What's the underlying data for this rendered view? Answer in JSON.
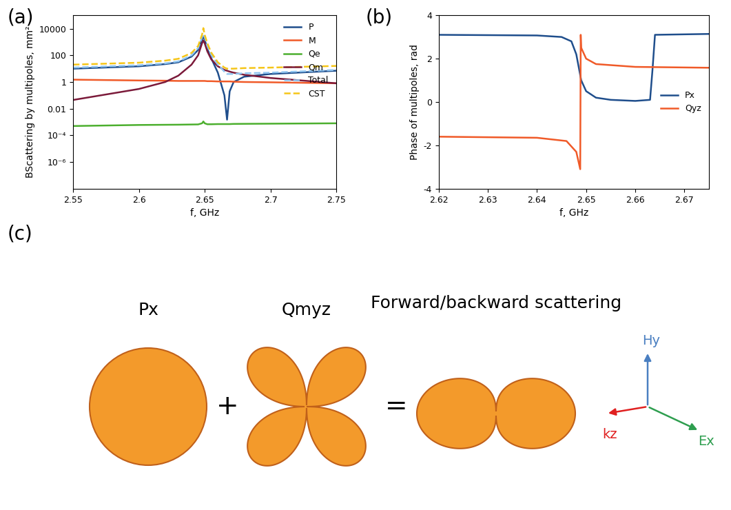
{
  "chart_data": [
    {
      "type": "line",
      "title": "(a)",
      "x_label": "f, GHz",
      "y_label": "BScattering by multipoles, mm²",
      "log": "y",
      "legend": "upper right",
      "xlim": [
        2.55,
        2.75
      ],
      "xticks": [
        2.55,
        2.6,
        2.65,
        2.7,
        2.75
      ],
      "ylim": [
        1e-08,
        100000
      ],
      "yticks": [
        {
          "value": 1e-06,
          "label": "10⁻⁶"
        },
        {
          "value": 0.0001,
          "label": "10⁻⁴"
        },
        {
          "value": 0.01,
          "label": "0.01"
        },
        {
          "value": 1,
          "label": "1"
        },
        {
          "value": 100,
          "label": "100"
        },
        {
          "value": 10000,
          "label": "10000"
        }
      ],
      "x": [
        2.55,
        2.6,
        2.62,
        2.63,
        2.64,
        2.645,
        2.648,
        2.649,
        2.65,
        2.652,
        2.655,
        2.66,
        2.665,
        2.667,
        2.669,
        2.672,
        2.68,
        2.7,
        2.75
      ],
      "series": [
        {
          "name": "P",
          "color": "#1f4e8c",
          "line_style": "solid",
          "values": [
            10,
            15,
            22,
            30,
            80,
            250,
            1500,
            2500,
            1500,
            300,
            60,
            5,
            0.1,
            0.0015,
            0.2,
            1,
            2.5,
            4,
            7
          ]
        },
        {
          "name": "M",
          "color": "#f05a28",
          "line_style": "solid",
          "values": [
            1.5,
            1.3,
            1.25,
            1.2,
            1.2,
            1.2,
            1.2,
            1.2,
            1.2,
            1.15,
            1.15,
            1.1,
            1.1,
            1.1,
            1.1,
            1.05,
            1.0,
            0.95,
            0.8
          ]
        },
        {
          "name": "Qe",
          "color": "#4caf2e",
          "line_style": "solid",
          "values": [
            0.0005,
            0.0006,
            0.00062,
            0.00063,
            0.00065,
            0.00066,
            0.0008,
            0.0011,
            0.0008,
            0.00068,
            0.00068,
            0.0007,
            0.0007,
            0.0007,
            0.0007,
            0.00072,
            0.00073,
            0.00075,
            0.0008
          ]
        },
        {
          "name": "Qm",
          "color": "#7b1a3a",
          "line_style": "solid",
          "values": [
            0.045,
            0.3,
            1,
            3,
            20,
            100,
            800,
            1300,
            800,
            200,
            50,
            15,
            8,
            7,
            6,
            5,
            3.5,
            2,
            0.8
          ]
        },
        {
          "name": "Total",
          "color": "#8fc4f0",
          "line_style": "dashed",
          "values": [
            12,
            18,
            25,
            35,
            100,
            350,
            2300,
            4000,
            2300,
            500,
            110,
            20,
            6,
            4,
            4,
            4,
            4.5,
            5,
            8
          ]
        },
        {
          "name": "CST",
          "color": "#f5c518",
          "line_style": "dashed",
          "values": [
            20,
            28,
            40,
            55,
            150,
            500,
            3500,
            11000,
            3500,
            800,
            160,
            30,
            12,
            10,
            10,
            10,
            11,
            12,
            16
          ]
        }
      ]
    },
    {
      "type": "line",
      "title": "(b)",
      "x_label": "f, GHz",
      "y_label": "Phase of multipoles, rad",
      "legend": "center right",
      "xlim": [
        2.62,
        2.675
      ],
      "xticks": [
        2.62,
        2.63,
        2.64,
        2.65,
        2.66,
        2.67
      ],
      "ylim": [
        -4,
        4
      ],
      "yticks": [
        -4,
        -2,
        0,
        2,
        4
      ],
      "series": [
        {
          "name": "Px",
          "color": "#1f4e8c",
          "line_style": "solid",
          "x": [
            2.62,
            2.64,
            2.645,
            2.647,
            2.648,
            2.649,
            2.65,
            2.652,
            2.655,
            2.66,
            2.663,
            2.6635,
            2.664,
            2.675
          ],
          "values": [
            3.1,
            3.07,
            3.0,
            2.8,
            2.2,
            1.0,
            0.5,
            0.2,
            0.1,
            0.05,
            0.1,
            1.5,
            3.1,
            3.14
          ]
        },
        {
          "name": "Qyz",
          "color": "#f05a28",
          "line_style": "solid",
          "x": [
            2.62,
            2.64,
            2.646,
            2.648,
            2.6488,
            2.6489,
            2.649,
            2.65,
            2.652,
            2.66,
            2.675
          ],
          "values": [
            -1.6,
            -1.65,
            -1.8,
            -2.3,
            -3.1,
            3.1,
            2.5,
            2.0,
            1.75,
            1.62,
            1.58
          ]
        }
      ]
    }
  ],
  "diagram": {
    "label": "(c)",
    "terms": [
      "Px",
      "Qmyz"
    ],
    "operators": [
      "+",
      "="
    ],
    "result": "Forward/backward scattering",
    "axes": [
      "Hy",
      "Ex",
      "kz"
    ]
  }
}
